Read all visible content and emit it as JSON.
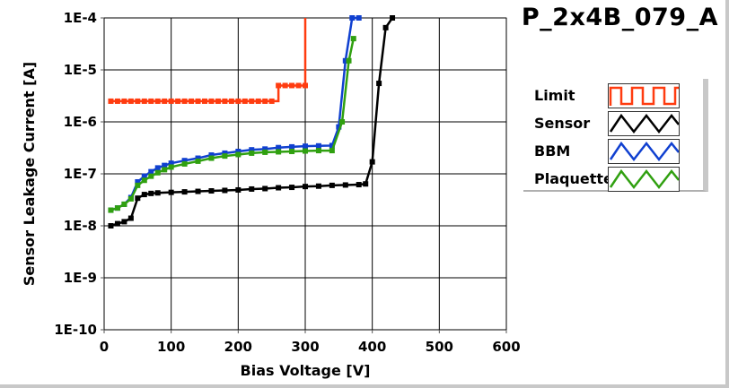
{
  "chart_data": {
    "type": "line",
    "title": "P_2x4B_079_A",
    "xlabel": "Bias Voltage [V]",
    "ylabel": "Sensor Leakage Current [A]",
    "xlim": [
      0,
      600
    ],
    "ylim": [
      1e-10,
      0.0001
    ],
    "yscale": "log",
    "grid": true,
    "legend_position": "right",
    "x_ticks": [
      "0",
      "100",
      "200",
      "300",
      "400",
      "500",
      "600"
    ],
    "y_ticks": [
      "1E-4",
      "1E-5",
      "1E-6",
      "1E-7",
      "1E-8",
      "1E-9",
      "1E-10"
    ],
    "series": [
      {
        "name": "Limit",
        "color": "#ff3c10",
        "step": true,
        "x": [
          10,
          20,
          30,
          40,
          50,
          60,
          70,
          80,
          90,
          100,
          110,
          120,
          130,
          140,
          150,
          160,
          170,
          180,
          190,
          200,
          210,
          220,
          230,
          240,
          250,
          260,
          270,
          280,
          290,
          300,
          300
        ],
        "y": [
          2.5e-06,
          2.5e-06,
          2.5e-06,
          2.5e-06,
          2.5e-06,
          2.5e-06,
          2.5e-06,
          2.5e-06,
          2.5e-06,
          2.5e-06,
          2.5e-06,
          2.5e-06,
          2.5e-06,
          2.5e-06,
          2.5e-06,
          2.5e-06,
          2.5e-06,
          2.5e-06,
          2.5e-06,
          2.5e-06,
          2.5e-06,
          2.5e-06,
          2.5e-06,
          2.5e-06,
          2.5e-06,
          5e-06,
          5e-06,
          5e-06,
          5e-06,
          5e-06,
          0.0001
        ]
      },
      {
        "name": "Sensor",
        "color": "#000000",
        "x": [
          10,
          20,
          30,
          40,
          50,
          60,
          70,
          80,
          100,
          120,
          140,
          160,
          180,
          200,
          220,
          240,
          260,
          280,
          300,
          320,
          340,
          360,
          380,
          390,
          400,
          410,
          420,
          430
        ],
        "y": [
          1e-08,
          1.1e-08,
          1.2e-08,
          1.4e-08,
          3.4e-08,
          4e-08,
          4.2e-08,
          4.3e-08,
          4.4e-08,
          4.5e-08,
          4.6e-08,
          4.7e-08,
          4.8e-08,
          4.9e-08,
          5.1e-08,
          5.2e-08,
          5.4e-08,
          5.5e-08,
          5.7e-08,
          5.8e-08,
          6e-08,
          6.1e-08,
          6.2e-08,
          6.4e-08,
          1.7e-07,
          5.5e-06,
          6.5e-05,
          0.0001
        ]
      },
      {
        "name": "BBM",
        "color": "#1040d0",
        "x": [
          10,
          20,
          30,
          40,
          50,
          60,
          70,
          80,
          90,
          100,
          120,
          140,
          160,
          180,
          200,
          220,
          240,
          260,
          280,
          300,
          320,
          340,
          350,
          360,
          370,
          380
        ],
        "y": [
          2e-08,
          2.2e-08,
          2.6e-08,
          3.5e-08,
          7e-08,
          9e-08,
          1.1e-07,
          1.3e-07,
          1.45e-07,
          1.6e-07,
          1.8e-07,
          2e-07,
          2.3e-07,
          2.5e-07,
          2.7e-07,
          2.9e-07,
          3e-07,
          3.2e-07,
          3.3e-07,
          3.4e-07,
          3.45e-07,
          3.5e-07,
          8e-07,
          1.5e-05,
          0.0001,
          0.0001
        ]
      },
      {
        "name": "Plaquette",
        "color": "#30a010",
        "x": [
          10,
          20,
          30,
          40,
          50,
          60,
          70,
          80,
          90,
          100,
          120,
          140,
          160,
          180,
          200,
          220,
          240,
          260,
          280,
          300,
          320,
          340,
          355,
          365,
          372
        ],
        "y": [
          2e-08,
          2.2e-08,
          2.6e-08,
          3.3e-08,
          6e-08,
          7.5e-08,
          9e-08,
          1.05e-07,
          1.2e-07,
          1.35e-07,
          1.55e-07,
          1.75e-07,
          2e-07,
          2.2e-07,
          2.35e-07,
          2.5e-07,
          2.6e-07,
          2.65e-07,
          2.7e-07,
          2.75e-07,
          2.8e-07,
          2.8e-07,
          1e-06,
          1.5e-05,
          4e-05
        ]
      }
    ]
  }
}
